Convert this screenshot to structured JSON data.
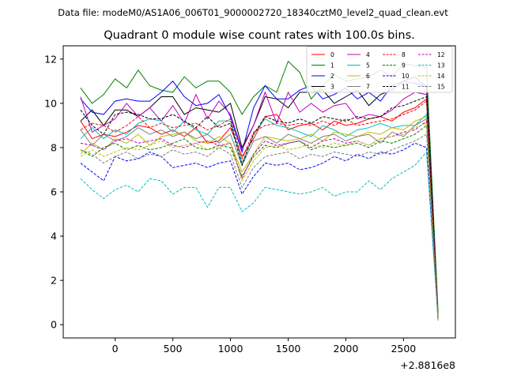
{
  "chart_data": {
    "type": "line",
    "suptitle": "Data file: modeM0/AS1A06_006T01_9000002720_18340cztM0_level2_quad_clean.evt",
    "title": "Quadrant 0 module wise count rates with 100.0s bins.",
    "xlabel": "",
    "ylabel": "",
    "x_offset_label": "+2.8816e8",
    "xlim": [
      -450,
      2950
    ],
    "ylim": [
      -0.6,
      12.6
    ],
    "x_ticks": [
      0,
      500,
      1000,
      1500,
      2000,
      2500
    ],
    "x_tick_labels": [
      "0",
      "500",
      "1000",
      "1500",
      "2000",
      "2500"
    ],
    "y_ticks": [
      0,
      2,
      4,
      6,
      8,
      10,
      12
    ],
    "y_tick_labels": [
      "0",
      "2",
      "4",
      "6",
      "8",
      "10",
      "12"
    ],
    "grid": false,
    "legend_position": "top-right",
    "legend_columns": 4,
    "x": [
      -300,
      -200,
      -100,
      0,
      100,
      200,
      300,
      400,
      500,
      600,
      700,
      800,
      900,
      1000,
      1100,
      1200,
      1300,
      1400,
      1500,
      1600,
      1700,
      1800,
      1900,
      2000,
      2100,
      2200,
      2300,
      2400,
      2500,
      2600,
      2700,
      2800
    ],
    "series": [
      {
        "name": "0",
        "color": "#ff0000",
        "dash": "solid",
        "values": [
          9.2,
          8.4,
          8.6,
          8.5,
          8.7,
          9.0,
          8.9,
          8.6,
          8.8,
          8.5,
          8.9,
          8.2,
          8.3,
          8.9,
          7.6,
          8.4,
          9.4,
          9.5,
          8.8,
          9.0,
          9.1,
          8.8,
          9.2,
          9.0,
          9.1,
          9.3,
          9.4,
          9.2,
          9.6,
          9.8,
          10.2,
          0.3
        ]
      },
      {
        "name": "1",
        "color": "#008000",
        "dash": "solid",
        "values": [
          10.7,
          10.0,
          10.4,
          11.1,
          10.7,
          11.5,
          10.8,
          10.6,
          10.5,
          11.2,
          10.7,
          11.0,
          11.0,
          10.5,
          9.5,
          10.3,
          10.8,
          10.5,
          11.9,
          11.4,
          10.2,
          10.8,
          11.3,
          11.0,
          11.1,
          11.2,
          11.5,
          11.2,
          11.8,
          11.7,
          11.6,
          0.6
        ]
      },
      {
        "name": "2",
        "color": "#0000ff",
        "dash": "solid",
        "values": [
          10.2,
          9.6,
          9.5,
          10.1,
          10.2,
          10.1,
          10.1,
          10.5,
          11.0,
          10.3,
          9.9,
          10.0,
          10.4,
          9.4,
          7.8,
          9.8,
          10.8,
          10.2,
          10.2,
          10.6,
          10.8,
          10.2,
          10.4,
          10.7,
          10.2,
          10.5,
          10.1,
          10.8,
          11.0,
          10.9,
          10.8,
          0.3
        ]
      },
      {
        "name": "3",
        "color": "#000000",
        "dash": "solid",
        "values": [
          9.2,
          9.7,
          9.0,
          9.7,
          9.7,
          9.4,
          9.8,
          10.3,
          10.3,
          9.5,
          9.8,
          9.7,
          9.6,
          10.0,
          8.0,
          9.0,
          10.3,
          10.2,
          9.8,
          10.5,
          10.5,
          10.6,
          10.0,
          10.3,
          10.6,
          9.9,
          10.4,
          10.6,
          11.0,
          11.2,
          10.7,
          0.3
        ]
      },
      {
        "name": "4",
        "color": "#bf00bf",
        "dash": "solid",
        "values": [
          10.3,
          8.7,
          9.0,
          9.3,
          10.0,
          9.4,
          9.8,
          9.2,
          9.9,
          9.1,
          10.4,
          9.3,
          10.1,
          9.5,
          7.9,
          9.0,
          10.5,
          9.1,
          10.5,
          9.6,
          10.0,
          9.6,
          9.9,
          10.0,
          9.3,
          9.5,
          9.4,
          9.7,
          10.2,
          10.5,
          10.4,
          0.3
        ]
      },
      {
        "name": "5",
        "color": "#00bfbf",
        "dash": "solid",
        "values": [
          8.4,
          8.9,
          8.4,
          8.8,
          8.6,
          9.1,
          9.3,
          9.2,
          8.7,
          9.2,
          8.8,
          8.6,
          9.2,
          9.2,
          7.3,
          8.6,
          9.3,
          9.0,
          8.9,
          8.7,
          8.5,
          9.0,
          8.8,
          8.5,
          8.8,
          8.9,
          9.1,
          8.9,
          9.0,
          9.0,
          9.5,
          0.3
        ]
      },
      {
        "name": "6",
        "color": "#bfbf00",
        "dash": "solid",
        "values": [
          7.7,
          8.2,
          7.9,
          8.4,
          8.2,
          8.6,
          8.1,
          8.5,
          8.6,
          8.7,
          8.3,
          8.2,
          8.5,
          8.2,
          6.9,
          7.7,
          8.5,
          8.4,
          8.3,
          8.4,
          8.6,
          8.3,
          8.7,
          8.6,
          8.5,
          8.7,
          8.6,
          8.9,
          8.8,
          9.2,
          9.4,
          0.3
        ]
      },
      {
        "name": "7",
        "color": "#7f7f7f",
        "dash": "solid",
        "values": [
          8.8,
          8.1,
          8.6,
          8.3,
          8.5,
          8.9,
          8.6,
          8.8,
          8.5,
          8.7,
          8.4,
          8.6,
          8.2,
          8.6,
          7.2,
          8.3,
          8.5,
          8.2,
          8.6,
          8.4,
          8.2,
          8.5,
          8.6,
          8.3,
          8.5,
          8.6,
          8.2,
          8.7,
          8.5,
          9.0,
          9.3,
          0.3
        ]
      },
      {
        "name": "8",
        "color": "#ff0000",
        "dash": "dashed",
        "values": [
          8.8,
          9.1,
          9.0,
          8.7,
          9.0,
          9.4,
          8.9,
          9.1,
          8.9,
          9.0,
          9.1,
          8.8,
          9.0,
          9.3,
          7.5,
          8.7,
          9.0,
          9.1,
          9.0,
          9.1,
          9.0,
          9.2,
          9.0,
          9.3,
          9.0,
          9.1,
          9.2,
          9.3,
          9.5,
          9.7,
          10.1,
          0.3
        ]
      },
      {
        "name": "9",
        "color": "#008000",
        "dash": "dashed",
        "values": [
          7.9,
          7.6,
          8.0,
          8.2,
          7.9,
          8.1,
          7.9,
          8.0,
          8.2,
          8.4,
          8.0,
          7.9,
          8.1,
          8.0,
          6.7,
          7.6,
          8.1,
          8.0,
          8.2,
          8.3,
          7.9,
          8.1,
          8.0,
          8.1,
          8.2,
          8.0,
          8.3,
          8.2,
          8.4,
          8.6,
          9.0,
          0.3
        ]
      },
      {
        "name": "10",
        "color": "#0000ff",
        "dash": "dashed",
        "values": [
          7.3,
          6.9,
          6.5,
          7.6,
          7.4,
          7.5,
          7.8,
          7.6,
          7.1,
          7.2,
          7.3,
          7.1,
          7.3,
          7.4,
          5.9,
          6.7,
          7.3,
          7.2,
          7.3,
          7.0,
          7.1,
          7.3,
          7.6,
          7.4,
          7.7,
          7.5,
          7.8,
          7.7,
          7.9,
          8.2,
          8.0,
          0.2
        ]
      },
      {
        "name": "11",
        "color": "#000000",
        "dash": "dashed",
        "values": [
          9.7,
          9.0,
          8.6,
          9.5,
          9.6,
          9.5,
          9.3,
          9.3,
          9.5,
          9.2,
          8.9,
          9.4,
          8.9,
          9.1,
          7.2,
          8.6,
          9.4,
          9.2,
          9.1,
          9.3,
          9.1,
          9.4,
          9.3,
          9.2,
          9.4,
          9.3,
          9.4,
          9.8,
          9.9,
          10.1,
          10.3,
          0.2
        ]
      },
      {
        "name": "12",
        "color": "#bf00bf",
        "dash": "dashed",
        "values": [
          8.2,
          8.1,
          7.9,
          8.3,
          8.4,
          8.2,
          8.3,
          8.4,
          8.1,
          8.0,
          8.2,
          8.3,
          8.1,
          8.2,
          6.6,
          7.7,
          8.3,
          8.1,
          8.2,
          8.3,
          8.0,
          8.3,
          8.4,
          8.2,
          8.3,
          8.1,
          8.4,
          8.5,
          8.7,
          8.8,
          9.2,
          0.2
        ]
      },
      {
        "name": "13",
        "color": "#00bfbf",
        "dash": "dashed",
        "values": [
          6.6,
          6.1,
          5.7,
          6.1,
          6.3,
          6.0,
          6.6,
          6.5,
          5.9,
          6.2,
          6.2,
          5.3,
          6.2,
          6.2,
          5.1,
          5.5,
          6.2,
          6.1,
          6.0,
          5.9,
          6.0,
          6.2,
          5.8,
          6.0,
          6.0,
          6.5,
          6.1,
          6.6,
          6.9,
          7.2,
          7.8,
          0.2
        ]
      },
      {
        "name": "14",
        "color": "#bfbf00",
        "dash": "dashed",
        "values": [
          7.6,
          7.9,
          7.6,
          7.8,
          8.0,
          7.9,
          8.1,
          8.3,
          8.0,
          8.1,
          8.2,
          7.9,
          8.0,
          8.2,
          6.5,
          7.4,
          8.0,
          8.1,
          7.9,
          8.0,
          8.2,
          8.0,
          8.2,
          8.1,
          8.3,
          8.1,
          8.4,
          8.5,
          8.6,
          8.9,
          9.1,
          0.2
        ]
      },
      {
        "name": "15",
        "color": "#7f7f7f",
        "dash": "dashed",
        "values": [
          7.9,
          7.7,
          7.3,
          7.6,
          7.8,
          7.5,
          7.7,
          7.6,
          7.9,
          7.7,
          7.8,
          7.6,
          8.0,
          7.7,
          6.2,
          7.1,
          7.6,
          7.7,
          7.8,
          7.5,
          7.7,
          7.6,
          7.8,
          7.7,
          7.6,
          7.8,
          7.7,
          7.9,
          8.1,
          8.3,
          8.6,
          0.2
        ]
      }
    ]
  }
}
